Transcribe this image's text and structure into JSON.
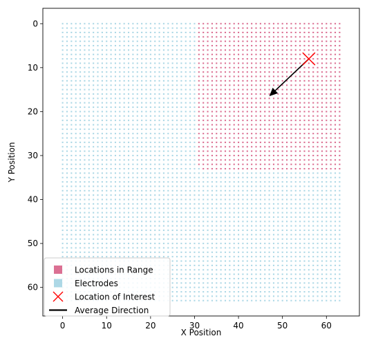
{
  "chart_data": {
    "type": "scatter",
    "title": "",
    "xlabel": "X Position",
    "ylabel": "Y Position",
    "xlim": [
      -4.5,
      67.5
    ],
    "ylim": [
      66.5,
      -3.5
    ],
    "y_inverted": true,
    "grid": false,
    "x_ticks": [
      0,
      10,
      20,
      30,
      40,
      50,
      60
    ],
    "y_ticks": [
      0,
      10,
      20,
      30,
      40,
      50,
      60
    ],
    "electrode_grid": {
      "x_range": [
        0,
        63
      ],
      "y_range": [
        0,
        63
      ]
    },
    "range_region": {
      "x_min": 31,
      "y_max": 33,
      "circle_center": [
        56,
        8
      ],
      "circle_radius_approx": 35
    },
    "location_of_interest": {
      "x": 56,
      "y": 8
    },
    "average_direction": {
      "from": [
        56,
        8
      ],
      "to": [
        47,
        16.5
      ]
    },
    "colors": {
      "locations_in_range": "#db7093",
      "electrodes": "#add8e6",
      "location_of_interest": "#ff0000",
      "average_direction": "#000000"
    },
    "legend": {
      "placement": "lower-left",
      "entries": [
        {
          "label": "Locations in Range",
          "marker": "square",
          "color": "#db7093"
        },
        {
          "label": "Electrodes",
          "marker": "square",
          "color": "#add8e6"
        },
        {
          "label": "Location of Interest",
          "marker": "x",
          "color": "#ff0000"
        },
        {
          "label": "Average Direction",
          "marker": "line",
          "color": "#000000"
        }
      ]
    }
  }
}
